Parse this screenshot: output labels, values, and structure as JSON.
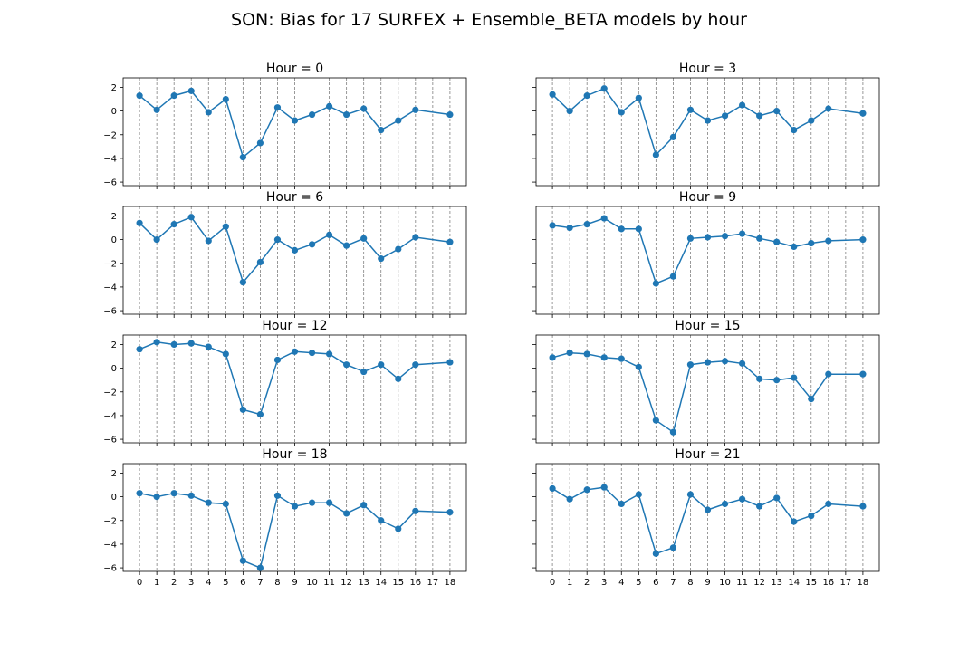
{
  "figure_title": "SON: Bias for 17 SURFEX + Ensemble_BETA models by hour",
  "colors": {
    "series": "#1f77b4",
    "grid": "#808080",
    "axis": "#000000"
  },
  "chart_data": [
    {
      "type": "line",
      "title": "Hour = 0",
      "x": [
        0,
        1,
        2,
        3,
        4,
        5,
        6,
        7,
        8,
        9,
        10,
        11,
        12,
        13,
        14,
        15,
        16,
        18
      ],
      "y": [
        1.3,
        0.1,
        1.3,
        1.7,
        -0.1,
        1.0,
        -3.9,
        -2.7,
        0.3,
        -0.8,
        -0.3,
        0.4,
        -0.3,
        0.2,
        -1.6,
        -0.8,
        0.1,
        -0.3
      ],
      "ylim": [
        -6.3,
        2.8
      ],
      "yticks": [
        2,
        0,
        -2,
        -4,
        -6
      ],
      "xticks": [
        0,
        1,
        2,
        3,
        4,
        5,
        6,
        7,
        8,
        9,
        10,
        11,
        12,
        13,
        14,
        15,
        16,
        17,
        18
      ],
      "xlim": [
        -0.95,
        18.95
      ],
      "grid": "vertical-dashed"
    },
    {
      "type": "line",
      "title": "Hour = 3",
      "x": [
        0,
        1,
        2,
        3,
        4,
        5,
        6,
        7,
        8,
        9,
        10,
        11,
        12,
        13,
        14,
        15,
        16,
        18
      ],
      "y": [
        1.4,
        0.0,
        1.3,
        1.9,
        -0.1,
        1.1,
        -3.7,
        -2.2,
        0.1,
        -0.8,
        -0.4,
        0.5,
        -0.4,
        0.0,
        -1.6,
        -0.8,
        0.2,
        -0.2
      ],
      "ylim": [
        -6.3,
        2.8
      ],
      "yticks": [
        2,
        0,
        -2,
        -4,
        -6
      ],
      "xticks": [
        0,
        1,
        2,
        3,
        4,
        5,
        6,
        7,
        8,
        9,
        10,
        11,
        12,
        13,
        14,
        15,
        16,
        17,
        18
      ],
      "xlim": [
        -0.95,
        18.95
      ],
      "grid": "vertical-dashed"
    },
    {
      "type": "line",
      "title": "Hour = 6",
      "x": [
        0,
        1,
        2,
        3,
        4,
        5,
        6,
        7,
        8,
        9,
        10,
        11,
        12,
        13,
        14,
        15,
        16,
        18
      ],
      "y": [
        1.4,
        0.0,
        1.3,
        1.9,
        -0.1,
        1.1,
        -3.6,
        -1.9,
        0.0,
        -0.9,
        -0.4,
        0.4,
        -0.5,
        0.1,
        -1.6,
        -0.8,
        0.2,
        -0.2
      ],
      "ylim": [
        -6.3,
        2.8
      ],
      "yticks": [
        2,
        0,
        -2,
        -4,
        -6
      ],
      "xticks": [
        0,
        1,
        2,
        3,
        4,
        5,
        6,
        7,
        8,
        9,
        10,
        11,
        12,
        13,
        14,
        15,
        16,
        17,
        18
      ],
      "xlim": [
        -0.95,
        18.95
      ],
      "grid": "vertical-dashed"
    },
    {
      "type": "line",
      "title": "Hour = 9",
      "x": [
        0,
        1,
        2,
        3,
        4,
        5,
        6,
        7,
        8,
        9,
        10,
        11,
        12,
        13,
        14,
        15,
        16,
        18
      ],
      "y": [
        1.2,
        1.0,
        1.3,
        1.8,
        0.9,
        0.9,
        -3.7,
        -3.1,
        0.1,
        0.2,
        0.3,
        0.5,
        0.1,
        -0.2,
        -0.6,
        -0.3,
        -0.1,
        0.0
      ],
      "ylim": [
        -6.3,
        2.8
      ],
      "yticks": [
        2,
        0,
        -2,
        -4,
        -6
      ],
      "xticks": [
        0,
        1,
        2,
        3,
        4,
        5,
        6,
        7,
        8,
        9,
        10,
        11,
        12,
        13,
        14,
        15,
        16,
        17,
        18
      ],
      "xlim": [
        -0.95,
        18.95
      ],
      "grid": "vertical-dashed"
    },
    {
      "type": "line",
      "title": "Hour = 12",
      "x": [
        0,
        1,
        2,
        3,
        4,
        5,
        6,
        7,
        8,
        9,
        10,
        11,
        12,
        13,
        14,
        15,
        16,
        18
      ],
      "y": [
        1.6,
        2.2,
        2.0,
        2.1,
        1.8,
        1.2,
        -3.5,
        -3.9,
        0.7,
        1.4,
        1.3,
        1.2,
        0.3,
        -0.3,
        0.3,
        -0.9,
        0.3,
        0.5
      ],
      "ylim": [
        -6.3,
        2.8
      ],
      "yticks": [
        2,
        0,
        -2,
        -4,
        -6
      ],
      "xticks": [
        0,
        1,
        2,
        3,
        4,
        5,
        6,
        7,
        8,
        9,
        10,
        11,
        12,
        13,
        14,
        15,
        16,
        17,
        18
      ],
      "xlim": [
        -0.95,
        18.95
      ],
      "grid": "vertical-dashed"
    },
    {
      "type": "line",
      "title": "Hour = 15",
      "x": [
        0,
        1,
        2,
        3,
        4,
        5,
        6,
        7,
        8,
        9,
        10,
        11,
        12,
        13,
        14,
        15,
        16,
        18
      ],
      "y": [
        0.9,
        1.3,
        1.2,
        0.9,
        0.8,
        0.1,
        -4.4,
        -5.4,
        0.3,
        0.5,
        0.6,
        0.4,
        -0.9,
        -1.0,
        -0.8,
        -2.6,
        -0.5,
        -0.5
      ],
      "ylim": [
        -6.3,
        2.8
      ],
      "yticks": [
        2,
        0,
        -2,
        -4,
        -6
      ],
      "xticks": [
        0,
        1,
        2,
        3,
        4,
        5,
        6,
        7,
        8,
        9,
        10,
        11,
        12,
        13,
        14,
        15,
        16,
        17,
        18
      ],
      "xlim": [
        -0.95,
        18.95
      ],
      "grid": "vertical-dashed"
    },
    {
      "type": "line",
      "title": "Hour = 18",
      "x": [
        0,
        1,
        2,
        3,
        4,
        5,
        6,
        7,
        8,
        9,
        10,
        11,
        12,
        13,
        14,
        15,
        16,
        18
      ],
      "y": [
        0.3,
        0.0,
        0.3,
        0.1,
        -0.5,
        -0.6,
        -5.4,
        -6.0,
        0.1,
        -0.8,
        -0.5,
        -0.5,
        -1.4,
        -0.7,
        -2.0,
        -2.7,
        -1.2,
        -1.3
      ],
      "ylim": [
        -6.3,
        2.8
      ],
      "yticks": [
        2,
        0,
        -2,
        -4,
        -6
      ],
      "xticks": [
        0,
        1,
        2,
        3,
        4,
        5,
        6,
        7,
        8,
        9,
        10,
        11,
        12,
        13,
        14,
        15,
        16,
        17,
        18
      ],
      "xlim": [
        -0.95,
        18.95
      ],
      "grid": "vertical-dashed"
    },
    {
      "type": "line",
      "title": "Hour = 21",
      "x": [
        0,
        1,
        2,
        3,
        4,
        5,
        6,
        7,
        8,
        9,
        10,
        11,
        12,
        13,
        14,
        15,
        16,
        18
      ],
      "y": [
        0.7,
        -0.2,
        0.6,
        0.8,
        -0.6,
        0.2,
        -4.8,
        -4.3,
        0.2,
        -1.1,
        -0.6,
        -0.2,
        -0.8,
        -0.1,
        -2.1,
        -1.6,
        -0.6,
        -0.8
      ],
      "ylim": [
        -6.3,
        2.8
      ],
      "yticks": [
        2,
        0,
        -2,
        -4,
        -6
      ],
      "xticks": [
        0,
        1,
        2,
        3,
        4,
        5,
        6,
        7,
        8,
        9,
        10,
        11,
        12,
        13,
        14,
        15,
        16,
        17,
        18
      ],
      "xlim": [
        -0.95,
        18.95
      ],
      "grid": "vertical-dashed"
    }
  ]
}
